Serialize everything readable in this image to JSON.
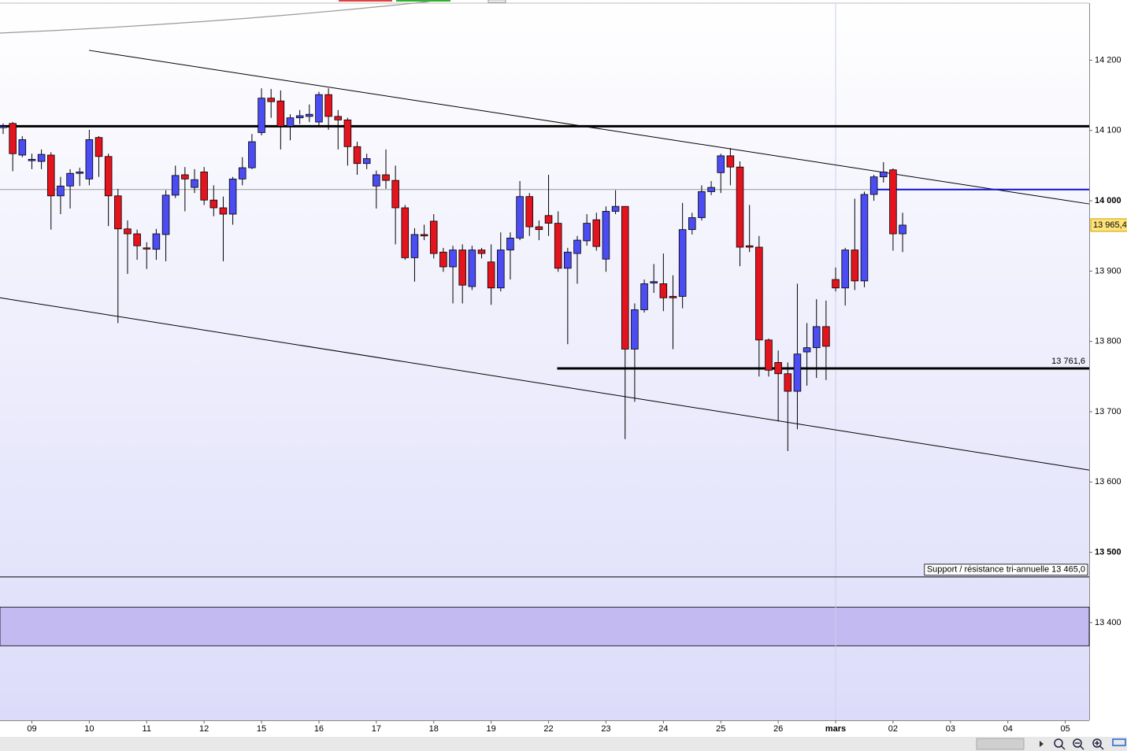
{
  "chart_data": {
    "type": "candlestick",
    "x": [
      0,
      1,
      2,
      3,
      4,
      5,
      6,
      7,
      8,
      9,
      10,
      11,
      12,
      13,
      14,
      15,
      16,
      17,
      18,
      19,
      20,
      21,
      22,
      23,
      24,
      25,
      26,
      27,
      28,
      29,
      30,
      31,
      32,
      33,
      34,
      35,
      36,
      37,
      38,
      39,
      40,
      41,
      42,
      43,
      44,
      45,
      46,
      47,
      48,
      49,
      50,
      51,
      52,
      53,
      54,
      55,
      56,
      57,
      58,
      59,
      60,
      61,
      62,
      63,
      64,
      65,
      66,
      67,
      68,
      69,
      70,
      71,
      72,
      73,
      74,
      75,
      76,
      77,
      78,
      79,
      80,
      81,
      82,
      83,
      84,
      85,
      86,
      87,
      88,
      89,
      90,
      91,
      92,
      93,
      94
    ],
    "open": [
      14104,
      14110,
      14065,
      14057,
      14056,
      14065,
      14007,
      14021,
      14039,
      14031,
      14090,
      14063,
      14007,
      13960,
      13953,
      13933,
      13931,
      13952,
      14008,
      14037,
      14019,
      14041,
      14001,
      13990,
      13981,
      14031,
      14047,
      14097,
      14146,
      14142,
      14106,
      14118,
      14120,
      14112,
      14151,
      14120,
      14115,
      14077,
      14053,
      14021,
      14037,
      14029,
      13990,
      13919,
      13952,
      13971,
      13927,
      13906,
      13930,
      13878,
      13930,
      13913,
      13876,
      13930,
      13947,
      14006,
      13963,
      13979,
      13968,
      13904,
      13925,
      13943,
      13973,
      13917,
      13985,
      13992,
      13789,
      13845,
      13883,
      13882,
      13864,
      13864,
      13959,
      13976,
      14013,
      14040,
      14064,
      14048,
      13936,
      13934,
      13802,
      13770,
      13754,
      13729,
      13785,
      13791,
      13821,
      13888,
      13876,
      13930,
      13886,
      14009,
      14034,
      14044,
      13953
    ],
    "high": [
      14110,
      14112,
      14092,
      14067,
      14073,
      14069,
      14034,
      14045,
      14047,
      14101,
      14092,
      14067,
      14017,
      13972,
      13959,
      13941,
      13960,
      14015,
      14050,
      14048,
      14045,
      14048,
      14022,
      14006,
      14034,
      14062,
      14095,
      14160,
      14159,
      14157,
      14123,
      14129,
      14137,
      14155,
      14160,
      14129,
      14118,
      14084,
      14067,
      14043,
      14073,
      14050,
      13994,
      13961,
      13966,
      13981,
      13933,
      13936,
      13938,
      13936,
      13933,
      13938,
      13955,
      13955,
      14028,
      14011,
      13972,
      14037,
      13985,
      13933,
      13950,
      13981,
      13983,
      13992,
      14015,
      13992,
      13854,
      13888,
      13910,
      13925,
      13894,
      13997,
      13983,
      14022,
      14028,
      14067,
      14075,
      14056,
      13994,
      13950,
      13804,
      13787,
      13770,
      13882,
      13826,
      13860,
      13858,
      13905,
      13933,
      14003,
      14013,
      14037,
      14055,
      14046,
      13983
    ],
    "low": [
      14095,
      14042,
      14062,
      14045,
      14045,
      13959,
      13981,
      13989,
      14021,
      14022,
      14034,
      13964,
      13826,
      13896,
      13916,
      13903,
      13916,
      13914,
      14004,
      13985,
      14011,
      13994,
      13978,
      13914,
      13966,
      14022,
      14045,
      14093,
      14118,
      14073,
      14086,
      14109,
      14112,
      14106,
      14101,
      14073,
      14050,
      14037,
      14045,
      13989,
      14017,
      13938,
      13916,
      13885,
      13944,
      13918,
      13899,
      13854,
      13854,
      13873,
      13918,
      13852,
      13871,
      13888,
      13944,
      13950,
      13944,
      13950,
      13899,
      13796,
      13882,
      13936,
      13929,
      13899,
      13981,
      13661,
      13714,
      13841,
      13869,
      13843,
      13789,
      13847,
      13952,
      13972,
      14008,
      14011,
      14022,
      13907,
      13927,
      13750,
      13750,
      13686,
      13644,
      13675,
      13737,
      13748,
      13745,
      13871,
      13851,
      13873,
      13877,
      14000,
      14026,
      13929,
      13927
    ],
    "close": [
      14106,
      14067,
      14087,
      14059,
      14066,
      14007,
      14021,
      14039,
      14041,
      14087,
      14063,
      14007,
      13960,
      13953,
      13936,
      13932,
      13953,
      14008,
      14036,
      14031,
      14030,
      14001,
      13990,
      13981,
      14031,
      14047,
      14084,
      14146,
      14141,
      14106,
      14118,
      14121,
      14123,
      14151,
      14120,
      14115,
      14077,
      14053,
      14060,
      14037,
      14029,
      13990,
      13919,
      13952,
      13950,
      13925,
      13906,
      13930,
      13880,
      13930,
      13925,
      13876,
      13930,
      13947,
      14006,
      13963,
      13959,
      13968,
      13904,
      13927,
      13944,
      13968,
      13935,
      13985,
      13992,
      13789,
      13845,
      13882,
      13885,
      13862,
      13862,
      13959,
      13976,
      14013,
      14019,
      14064,
      14048,
      13934,
      13934,
      13802,
      13759,
      13754,
      13729,
      13782,
      13791,
      13821,
      13793,
      13876,
      13930,
      13886,
      14009,
      14034,
      14041,
      13953,
      13965.4
    ],
    "up_color": "#4b4cf2",
    "down_color": "#e3141e",
    "xlim": [
      -0.33,
      113.5
    ],
    "ylim": [
      13261,
      14280
    ],
    "xticks": [
      {
        "value": 3,
        "label": "09"
      },
      {
        "value": 9,
        "label": "10"
      },
      {
        "value": 15,
        "label": "11"
      },
      {
        "value": 21,
        "label": "12"
      },
      {
        "value": 27,
        "label": "15"
      },
      {
        "value": 33,
        "label": "16"
      },
      {
        "value": 39,
        "label": "17"
      },
      {
        "value": 45,
        "label": "18"
      },
      {
        "value": 51,
        "label": "19"
      },
      {
        "value": 57,
        "label": "22"
      },
      {
        "value": 63,
        "label": "23"
      },
      {
        "value": 69,
        "label": "24"
      },
      {
        "value": 75,
        "label": "25"
      },
      {
        "value": 81,
        "label": "26"
      },
      {
        "value": 87,
        "label": "mars",
        "bold": true
      },
      {
        "value": 93,
        "label": "02"
      },
      {
        "value": 99,
        "label": "03"
      },
      {
        "value": 105,
        "label": "04"
      },
      {
        "value": 111,
        "label": "05"
      }
    ],
    "yticks": [
      {
        "value": 13400,
        "label": "13 400"
      },
      {
        "value": 13500,
        "label": "13 500",
        "bold": true
      },
      {
        "value": 13600,
        "label": "13 600"
      },
      {
        "value": 13700,
        "label": "13 700"
      },
      {
        "value": 13800,
        "label": "13 800"
      },
      {
        "value": 13900,
        "label": "13 900"
      },
      {
        "value": 14000,
        "label": "14 000",
        "bold": true
      },
      {
        "value": 14100,
        "label": "14 100"
      },
      {
        "value": 14200,
        "label": "14 200"
      }
    ],
    "separators": [
      87
    ],
    "trendlines": [
      {
        "x": [
          8.97,
          113.5
        ],
        "y": [
          14214,
          13995.5
        ]
      },
      {
        "x": [
          -0.33,
          113.5
        ],
        "y": [
          13862,
          13617
        ]
      }
    ],
    "levels": [
      {
        "value": 14106,
        "color": "#000000",
        "width": 3
      },
      {
        "value": 14016,
        "color": "#999999",
        "width": 1
      },
      {
        "value": 14016,
        "start": 91.4,
        "color": "#1010d0",
        "width": 2
      },
      {
        "value": 13761.6,
        "start": 57.9,
        "label": "13 761,6",
        "color": "#000000",
        "width": 3
      },
      {
        "value": 13465,
        "label": "Support / résistance tri-annuelle 13 465,0",
        "boxed": true,
        "color": "#000000",
        "width": 1
      }
    ],
    "band": {
      "from": 13367,
      "to": 13422,
      "color": "#c4baf2"
    },
    "last_price": {
      "value": 13965.4,
      "label": "13 965,4"
    }
  }
}
